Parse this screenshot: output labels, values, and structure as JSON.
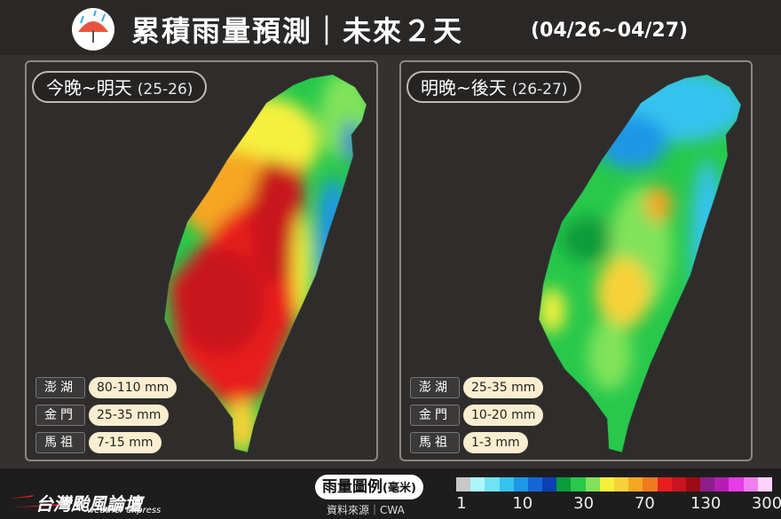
{
  "header": {
    "title": "累積雨量預測｜未來２天",
    "date": "(04/26~04/27)"
  },
  "panels": [
    {
      "title": "今晚~明天",
      "range": "(25-26)",
      "islands": [
        {
          "name": "澎湖",
          "amount": "80-110 mm"
        },
        {
          "name": "金門",
          "amount": "25-35 mm"
        },
        {
          "name": "馬祖",
          "amount": "7-15 mm"
        }
      ]
    },
    {
      "title": "明晚~後天",
      "range": "(26-27)",
      "islands": [
        {
          "name": "澎湖",
          "amount": "25-35 mm"
        },
        {
          "name": "金門",
          "amount": "10-20 mm"
        },
        {
          "name": "馬祖",
          "amount": "1-3 mm"
        }
      ]
    }
  ],
  "legend": {
    "title": "雨量圖例",
    "unit": "(毫米)",
    "source": "資料來源｜CWA",
    "colors": [
      "#c8c8c8",
      "#aef5fa",
      "#6fe3f4",
      "#34c3ef",
      "#1e97e6",
      "#1565d6",
      "#0c40b0",
      "#0a9b3a",
      "#27c84b",
      "#80e35a",
      "#f5f03c",
      "#f7d238",
      "#f5a623",
      "#f07b1e",
      "#e81e1e",
      "#c8141e",
      "#a00a14",
      "#8c1e8c",
      "#b41eb4",
      "#e63ce6",
      "#f07ef0",
      "#fcd2fc"
    ],
    "ticks": [
      1,
      10,
      30,
      70,
      130,
      300
    ]
  },
  "brand": {
    "name": "台灣颱風論壇",
    "sub": "weather express"
  }
}
